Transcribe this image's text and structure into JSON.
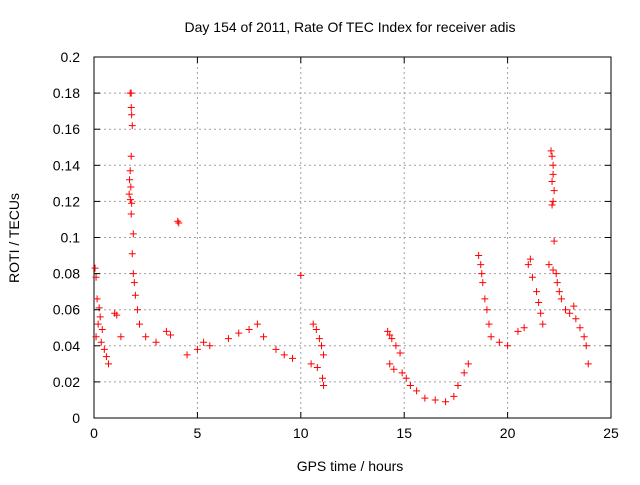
{
  "chart_data": {
    "type": "scatter",
    "title": "Day 154 of 2011, Rate Of TEC Index for receiver adis",
    "xlabel": "GPS time / hours",
    "ylabel": "ROTI / TECUs",
    "xlim": [
      0,
      25
    ],
    "ylim": [
      0,
      0.2
    ],
    "xticks": [
      0,
      5,
      10,
      15,
      20,
      25
    ],
    "yticks": [
      0,
      0.02,
      0.04,
      0.06,
      0.08,
      0.1,
      0.12,
      0.14,
      0.16,
      0.18,
      0.2
    ],
    "grid": true,
    "marker": "+",
    "color": "#ff0000",
    "series": [
      {
        "values": [
          [
            0.05,
            0.083
          ],
          [
            0.1,
            0.078
          ],
          [
            0.15,
            0.066
          ],
          [
            0.25,
            0.061
          ],
          [
            0.3,
            0.056
          ],
          [
            0.4,
            0.049
          ],
          [
            0.1,
            0.045
          ],
          [
            0.2,
            0.052
          ],
          [
            0.35,
            0.042
          ],
          [
            0.5,
            0.038
          ],
          [
            0.6,
            0.034
          ],
          [
            0.7,
            0.03
          ],
          [
            1.0,
            0.058
          ],
          [
            1.1,
            0.057
          ],
          [
            1.3,
            0.045
          ],
          [
            1.75,
            0.18
          ],
          [
            1.8,
            0.18
          ],
          [
            1.8,
            0.172
          ],
          [
            1.82,
            0.168
          ],
          [
            1.85,
            0.162
          ],
          [
            1.8,
            0.145
          ],
          [
            1.75,
            0.137
          ],
          [
            1.72,
            0.132
          ],
          [
            1.78,
            0.128
          ],
          [
            1.7,
            0.124
          ],
          [
            1.76,
            0.121
          ],
          [
            1.82,
            0.119
          ],
          [
            1.8,
            0.113
          ],
          [
            1.9,
            0.102
          ],
          [
            1.85,
            0.091
          ],
          [
            1.9,
            0.08
          ],
          [
            1.95,
            0.075
          ],
          [
            2.0,
            0.068
          ],
          [
            2.1,
            0.06
          ],
          [
            2.2,
            0.052
          ],
          [
            2.5,
            0.045
          ],
          [
            3.0,
            0.042
          ],
          [
            3.5,
            0.048
          ],
          [
            3.7,
            0.046
          ],
          [
            4.05,
            0.109
          ],
          [
            4.1,
            0.108
          ],
          [
            4.5,
            0.035
          ],
          [
            5.0,
            0.038
          ],
          [
            5.3,
            0.042
          ],
          [
            5.6,
            0.04
          ],
          [
            6.5,
            0.044
          ],
          [
            7.0,
            0.047
          ],
          [
            7.5,
            0.049
          ],
          [
            7.9,
            0.052
          ],
          [
            8.2,
            0.045
          ],
          [
            8.8,
            0.038
          ],
          [
            9.2,
            0.035
          ],
          [
            9.6,
            0.033
          ],
          [
            10.0,
            0.079
          ],
          [
            10.6,
            0.052
          ],
          [
            10.75,
            0.049
          ],
          [
            10.9,
            0.044
          ],
          [
            11.0,
            0.04
          ],
          [
            11.1,
            0.035
          ],
          [
            10.5,
            0.03
          ],
          [
            10.8,
            0.028
          ],
          [
            11.05,
            0.022
          ],
          [
            11.1,
            0.018
          ],
          [
            14.2,
            0.048
          ],
          [
            14.3,
            0.046
          ],
          [
            14.4,
            0.044
          ],
          [
            14.6,
            0.04
          ],
          [
            14.8,
            0.036
          ],
          [
            14.3,
            0.03
          ],
          [
            14.5,
            0.027
          ],
          [
            14.9,
            0.025
          ],
          [
            15.1,
            0.022
          ],
          [
            15.3,
            0.018
          ],
          [
            15.6,
            0.015
          ],
          [
            16.0,
            0.011
          ],
          [
            16.5,
            0.01
          ],
          [
            17.0,
            0.009
          ],
          [
            17.4,
            0.012
          ],
          [
            17.6,
            0.018
          ],
          [
            17.9,
            0.025
          ],
          [
            18.1,
            0.03
          ],
          [
            18.6,
            0.09
          ],
          [
            18.7,
            0.085
          ],
          [
            18.75,
            0.08
          ],
          [
            18.8,
            0.075
          ],
          [
            18.9,
            0.066
          ],
          [
            19.0,
            0.06
          ],
          [
            19.1,
            0.052
          ],
          [
            19.2,
            0.045
          ],
          [
            19.6,
            0.042
          ],
          [
            20.0,
            0.04
          ],
          [
            20.5,
            0.048
          ],
          [
            20.8,
            0.05
          ],
          [
            21.0,
            0.085
          ],
          [
            21.1,
            0.088
          ],
          [
            21.2,
            0.078
          ],
          [
            21.4,
            0.07
          ],
          [
            21.5,
            0.064
          ],
          [
            21.6,
            0.058
          ],
          [
            21.7,
            0.052
          ],
          [
            22.1,
            0.148
          ],
          [
            22.15,
            0.145
          ],
          [
            22.2,
            0.14
          ],
          [
            22.2,
            0.135
          ],
          [
            22.15,
            0.131
          ],
          [
            22.25,
            0.126
          ],
          [
            22.2,
            0.12
          ],
          [
            22.15,
            0.118
          ],
          [
            22.25,
            0.098
          ],
          [
            22.0,
            0.085
          ],
          [
            22.2,
            0.082
          ],
          [
            22.35,
            0.08
          ],
          [
            22.4,
            0.075
          ],
          [
            22.5,
            0.07
          ],
          [
            22.6,
            0.066
          ],
          [
            22.8,
            0.06
          ],
          [
            23.0,
            0.058
          ],
          [
            23.2,
            0.062
          ],
          [
            23.3,
            0.055
          ],
          [
            23.5,
            0.05
          ],
          [
            23.7,
            0.045
          ],
          [
            23.8,
            0.04
          ],
          [
            23.9,
            0.03
          ]
        ]
      }
    ]
  }
}
